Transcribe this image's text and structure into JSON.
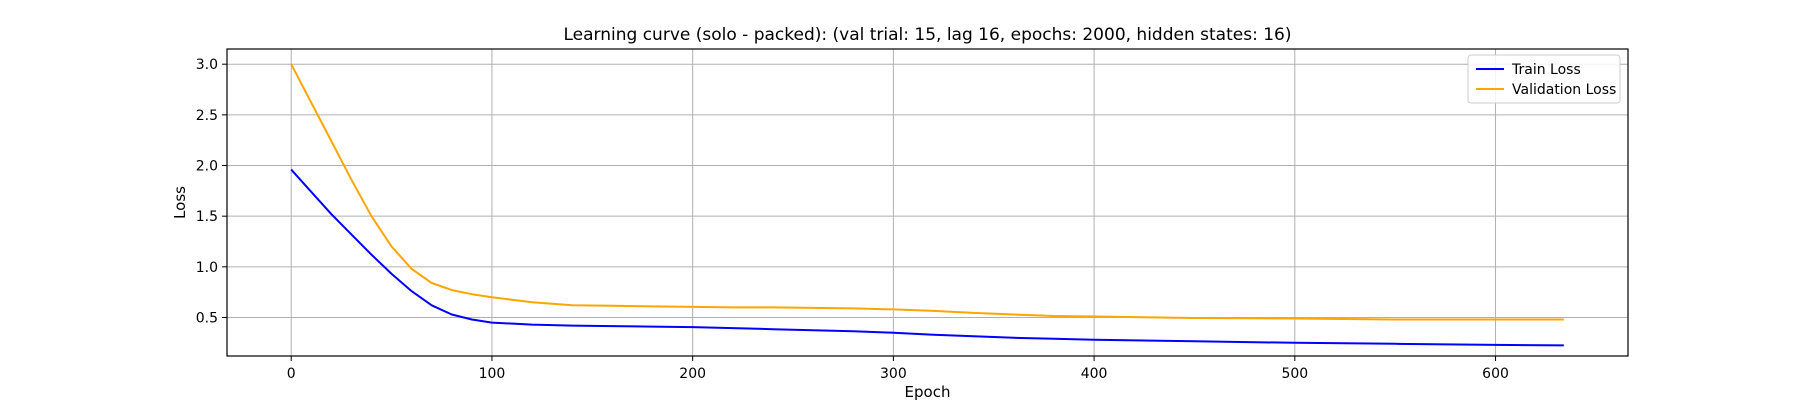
{
  "chart_data": {
    "type": "line",
    "title": "Learning curve (solo - packed): (val trial: 15, lag 16, epochs: 2000, hidden states: 16)",
    "xlabel": "Epoch",
    "ylabel": "Loss",
    "xlim": [
      -32,
      666
    ],
    "ylim": [
      0.12,
      3.15
    ],
    "xticks": [
      0,
      100,
      200,
      300,
      400,
      500,
      600
    ],
    "yticks": [
      0.5,
      1.0,
      1.5,
      2.0,
      2.5,
      3.0
    ],
    "xtick_labels": [
      "0",
      "100",
      "200",
      "300",
      "400",
      "500",
      "600"
    ],
    "ytick_labels": [
      "0.5",
      "1.0",
      "1.5",
      "2.0",
      "2.5",
      "3.0"
    ],
    "grid": true,
    "legend_position": "top-right",
    "series": [
      {
        "name": "Train Loss",
        "color": "#0000ff",
        "x": [
          0,
          10,
          20,
          30,
          40,
          50,
          60,
          70,
          80,
          90,
          100,
          120,
          140,
          160,
          180,
          200,
          220,
          240,
          260,
          280,
          300,
          320,
          340,
          360,
          380,
          400,
          450,
          500,
          550,
          600,
          634
        ],
        "y": [
          1.96,
          1.74,
          1.52,
          1.32,
          1.12,
          0.93,
          0.76,
          0.62,
          0.53,
          0.48,
          0.45,
          0.43,
          0.42,
          0.415,
          0.41,
          0.405,
          0.395,
          0.385,
          0.375,
          0.365,
          0.35,
          0.33,
          0.315,
          0.3,
          0.29,
          0.28,
          0.265,
          0.25,
          0.24,
          0.23,
          0.225
        ]
      },
      {
        "name": "Validation Loss",
        "color": "#ffa500",
        "x": [
          0,
          10,
          20,
          30,
          40,
          50,
          60,
          70,
          80,
          90,
          100,
          120,
          140,
          160,
          180,
          200,
          220,
          240,
          260,
          280,
          300,
          320,
          340,
          360,
          380,
          400,
          450,
          500,
          550,
          600,
          634
        ],
        "y": [
          3.0,
          2.62,
          2.24,
          1.86,
          1.5,
          1.2,
          0.98,
          0.84,
          0.77,
          0.73,
          0.7,
          0.65,
          0.62,
          0.615,
          0.61,
          0.605,
          0.6,
          0.6,
          0.595,
          0.59,
          0.58,
          0.565,
          0.545,
          0.53,
          0.515,
          0.51,
          0.495,
          0.49,
          0.48,
          0.48,
          0.48
        ]
      }
    ]
  }
}
